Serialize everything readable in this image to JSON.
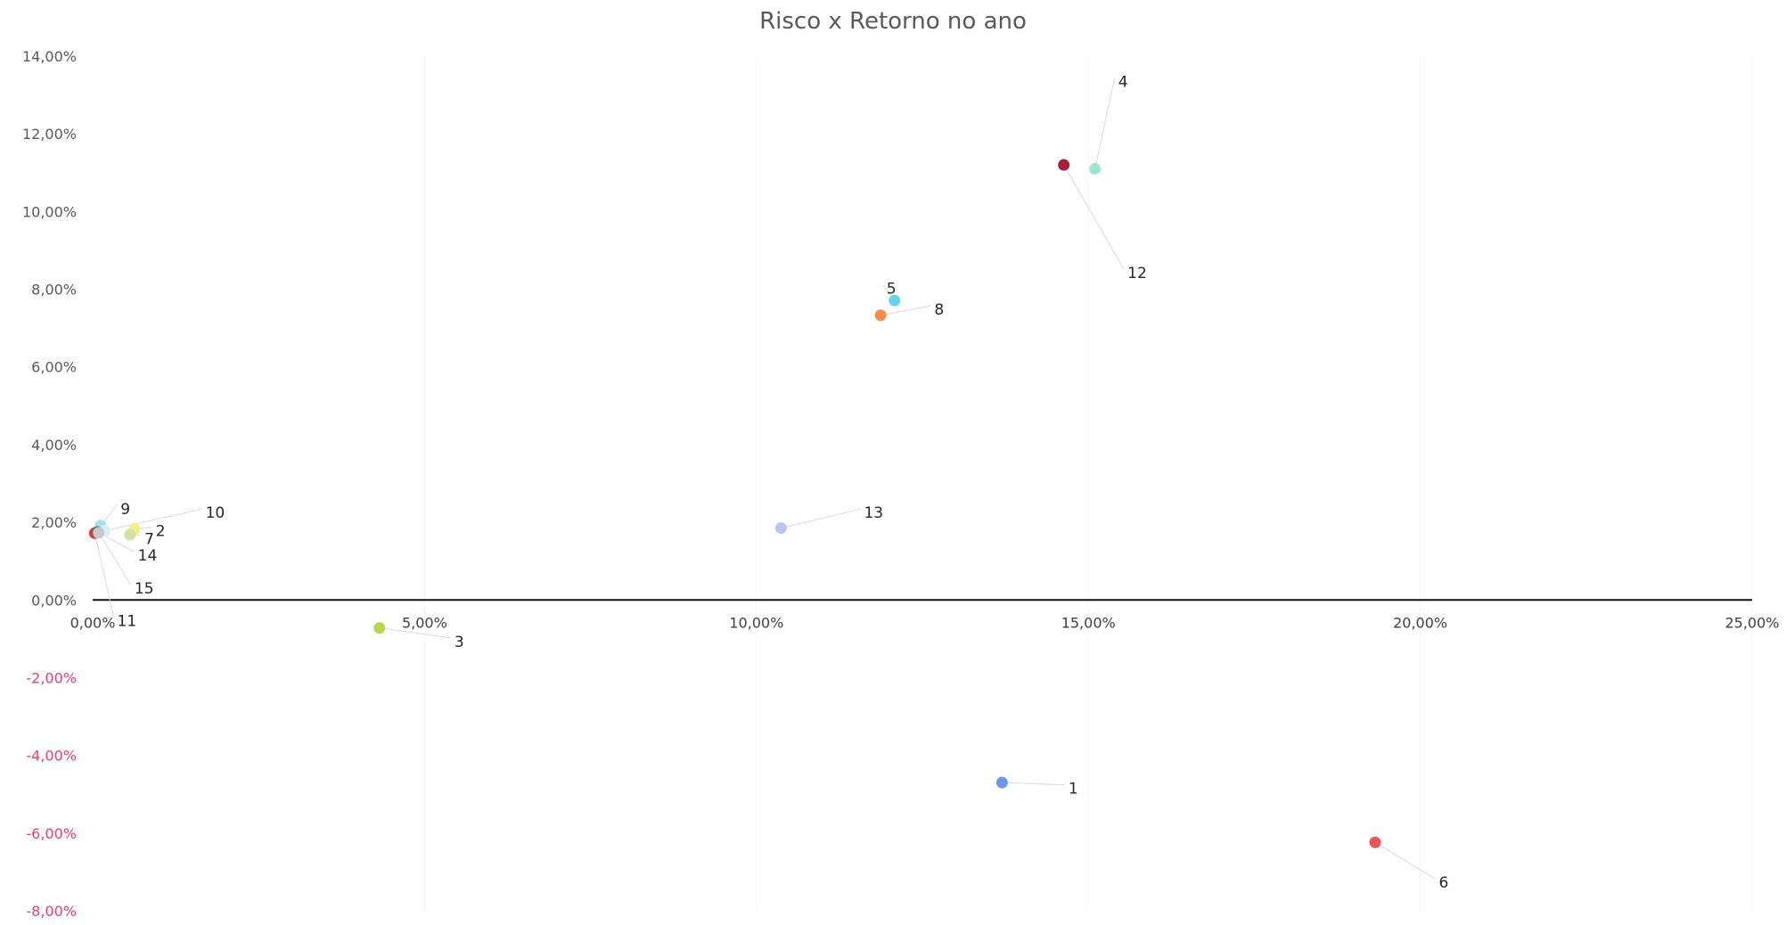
{
  "chart_data": {
    "type": "scatter",
    "title": "Risco x Retorno no ano",
    "xlabel": "",
    "ylabel": "",
    "xlim": [
      0,
      0.25
    ],
    "ylim": [
      -0.08,
      0.14
    ],
    "x_ticks": [
      {
        "value": 0.0,
        "label": "0,00%"
      },
      {
        "value": 0.05,
        "label": "5,00%"
      },
      {
        "value": 0.1,
        "label": "10,00%"
      },
      {
        "value": 0.15,
        "label": "15,00%"
      },
      {
        "value": 0.2,
        "label": "20,00%"
      },
      {
        "value": 0.25,
        "label": "25,00%"
      }
    ],
    "y_ticks": [
      {
        "value": 0.14,
        "label": "14,00%"
      },
      {
        "value": 0.12,
        "label": "12,00%"
      },
      {
        "value": 0.1,
        "label": "10,00%"
      },
      {
        "value": 0.08,
        "label": "8,00%"
      },
      {
        "value": 0.06,
        "label": "6,00%"
      },
      {
        "value": 0.04,
        "label": "4,00%"
      },
      {
        "value": 0.02,
        "label": "2,00%"
      },
      {
        "value": 0.0,
        "label": "0,00%"
      },
      {
        "value": -0.02,
        "label": "-2,00%"
      },
      {
        "value": -0.04,
        "label": "-4,00%"
      },
      {
        "value": -0.06,
        "label": "-6,00%"
      },
      {
        "value": -0.08,
        "label": "-8,00%"
      }
    ],
    "positive_tick_color": "#595959",
    "negative_tick_color": "#e8416f",
    "grid": "vertical-faint",
    "legend": "none",
    "points": [
      {
        "label": "1",
        "x": 0.137,
        "y": -0.047,
        "color": "#6d97e4",
        "label_pos": [
          0.147,
          -0.0485
        ]
      },
      {
        "label": "2",
        "x": 0.0063,
        "y": 0.0183,
        "color": "#f2ee8a",
        "label_pos": [
          0.0095,
          0.0178
        ]
      },
      {
        "label": "3",
        "x": 0.0432,
        "y": -0.0072,
        "color": "#b7d64a",
        "label_pos": [
          0.0545,
          -0.0107
        ]
      },
      {
        "label": "4",
        "x": 0.151,
        "y": 0.111,
        "color": "#9ee6c9",
        "label_pos": [
          0.1545,
          0.1335
        ]
      },
      {
        "label": "5",
        "x": 0.1208,
        "y": 0.0771,
        "color": "#63d3ee",
        "label_pos": [
          0.1196,
          0.0802
        ]
      },
      {
        "label": "6",
        "x": 0.1932,
        "y": -0.0624,
        "color": "#f05555",
        "label_pos": [
          0.2028,
          -0.0727
        ]
      },
      {
        "label": "7",
        "x": 0.0056,
        "y": 0.0168,
        "color": "#cfe3a4",
        "label_pos": [
          0.0078,
          0.0158
        ]
      },
      {
        "label": "8",
        "x": 0.1187,
        "y": 0.0733,
        "color": "#f58e45",
        "label_pos": [
          0.1268,
          0.0748
        ]
      },
      {
        "label": "9",
        "x": 0.0012,
        "y": 0.0192,
        "color": "#a6e1ea",
        "label_pos": [
          0.0042,
          0.0235
        ]
      },
      {
        "label": "10",
        "x": 0.0018,
        "y": 0.0178,
        "color": "#d9f0f4",
        "label_pos": [
          0.017,
          0.0225
        ]
      },
      {
        "label": "11",
        "x": 0.0003,
        "y": 0.0172,
        "color": "#e8383b",
        "label_pos": [
          0.0037,
          -0.0053
        ]
      },
      {
        "label": "12",
        "x": 0.1463,
        "y": 0.112,
        "color": "#a82036",
        "label_pos": [
          0.1559,
          0.0842
        ]
      },
      {
        "label": "13",
        "x": 0.1037,
        "y": 0.0185,
        "color": "#b6c6f2",
        "label_pos": [
          0.1162,
          0.0225
        ]
      },
      {
        "label": "14",
        "x": 0.0007,
        "y": 0.0175,
        "color": "#2e7c62",
        "label_pos": [
          0.0068,
          0.0115
        ]
      },
      {
        "label": "15",
        "x": 0.0009,
        "y": 0.0173,
        "color": "#c9c9c9",
        "label_pos": [
          0.0063,
          0.003
        ]
      }
    ]
  }
}
